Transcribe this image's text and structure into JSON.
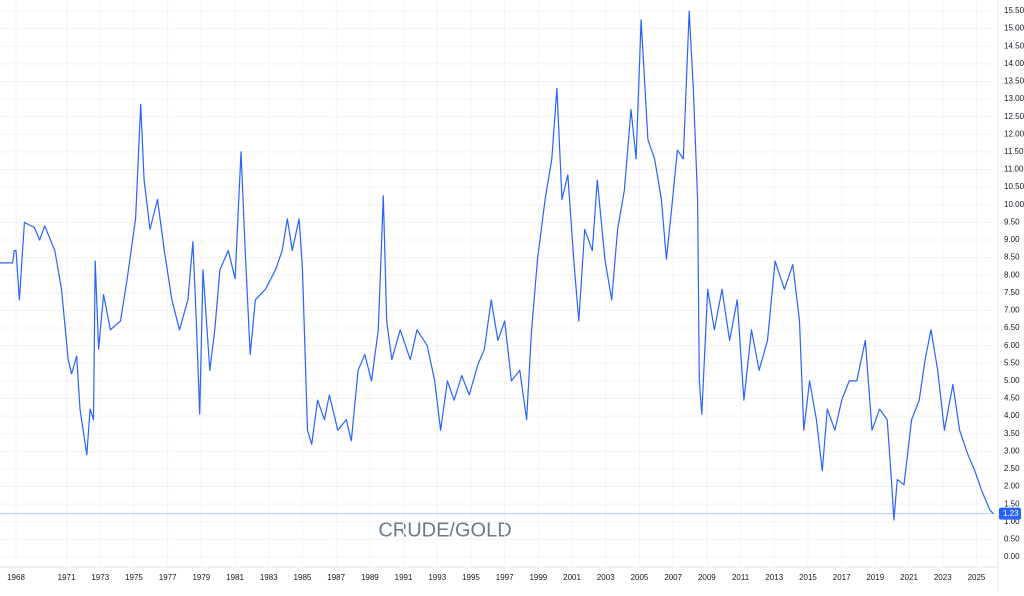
{
  "chart_data": {
    "type": "line",
    "title": "CRUDE/GOLD",
    "x": [
      1967.05,
      1967.8,
      1967.9,
      1968.0,
      1968.2,
      1968.5,
      1969.1,
      1969.4,
      1969.7,
      1970.3,
      1970.7,
      1971.1,
      1971.3,
      1971.6,
      1971.8,
      1972.2,
      1972.4,
      1972.6,
      1972.7,
      1972.9,
      1973.2,
      1973.6,
      1974.2,
      1974.6,
      1975.1,
      1975.4,
      1975.6,
      1975.95,
      1976.4,
      1976.8,
      1977.25,
      1977.7,
      1978.2,
      1978.5,
      1978.7,
      1978.9,
      1979.1,
      1979.5,
      1979.8,
      1980.1,
      1980.6,
      1981.0,
      1981.35,
      1981.6,
      1981.9,
      1982.2,
      1982.8,
      1983.4,
      1983.8,
      1984.1,
      1984.4,
      1984.8,
      1985.0,
      1985.3,
      1985.55,
      1985.9,
      1986.3,
      1986.6,
      1987.1,
      1987.6,
      1987.9,
      1988.3,
      1988.7,
      1989.1,
      1989.5,
      1989.8,
      1990.0,
      1990.3,
      1990.8,
      1991.4,
      1991.8,
      1992.4,
      1992.85,
      1993.2,
      1993.6,
      1994.0,
      1994.45,
      1994.9,
      1995.4,
      1995.8,
      1996.2,
      1996.6,
      1997.0,
      1997.4,
      1997.9,
      1998.3,
      1998.6,
      1998.95,
      1999.4,
      1999.8,
      2000.1,
      2000.4,
      2000.75,
      2001.1,
      2001.4,
      2001.75,
      2002.2,
      2002.5,
      2002.95,
      2003.35,
      2003.7,
      2004.1,
      2004.5,
      2004.8,
      2005.1,
      2005.5,
      2005.9,
      2006.3,
      2006.6,
      2006.9,
      2007.25,
      2007.6,
      2007.95,
      2008.2,
      2008.45,
      2008.55,
      2008.7,
      2009.05,
      2009.45,
      2009.9,
      2010.35,
      2010.8,
      2011.2,
      2011.65,
      2012.1,
      2012.6,
      2013.05,
      2013.6,
      2014.1,
      2014.5,
      2014.75,
      2015.1,
      2015.5,
      2015.85,
      2016.15,
      2016.6,
      2017.0,
      2017.45,
      2017.9,
      2018.4,
      2018.8,
      2019.25,
      2019.7,
      2019.95,
      2020.1,
      2020.3,
      2020.7,
      2021.15,
      2021.6,
      2021.95,
      2022.3,
      2022.7,
      2023.1,
      2023.6,
      2024.0,
      2024.5,
      2024.9,
      2025.3,
      2025.8,
      2026.0
    ],
    "series": [
      {
        "color": "#2962ff",
        "values": [
          8.35,
          8.35,
          8.7,
          8.7,
          7.3,
          9.5,
          9.35,
          9.0,
          9.4,
          8.7,
          7.6,
          5.6,
          5.2,
          5.7,
          4.2,
          2.9,
          4.2,
          3.9,
          8.4,
          5.9,
          7.45,
          6.45,
          6.7,
          7.9,
          9.6,
          12.85,
          10.7,
          9.3,
          10.15,
          8.7,
          7.3,
          6.45,
          7.3,
          8.95,
          6.7,
          4.05,
          8.15,
          5.3,
          6.45,
          8.15,
          8.7,
          7.9,
          11.5,
          8.7,
          5.75,
          7.3,
          7.6,
          8.15,
          8.7,
          9.6,
          8.7,
          9.6,
          8.15,
          3.6,
          3.2,
          4.45,
          3.9,
          4.6,
          3.6,
          3.9,
          3.3,
          5.3,
          5.75,
          5.0,
          6.45,
          10.25,
          6.7,
          5.6,
          6.45,
          5.6,
          6.45,
          6.0,
          5.0,
          3.6,
          5.0,
          4.45,
          5.15,
          4.6,
          5.45,
          5.9,
          7.3,
          6.15,
          6.7,
          5.0,
          5.3,
          3.9,
          6.45,
          8.45,
          10.15,
          11.3,
          13.3,
          10.15,
          10.85,
          8.45,
          6.7,
          9.3,
          8.7,
          10.7,
          8.45,
          7.3,
          9.3,
          10.4,
          12.7,
          11.3,
          15.25,
          11.85,
          11.3,
          10.15,
          8.45,
          9.85,
          11.55,
          11.3,
          15.5,
          13.25,
          10.15,
          5.0,
          4.05,
          7.6,
          6.45,
          7.6,
          6.15,
          7.3,
          4.45,
          6.45,
          5.3,
          6.15,
          8.4,
          7.6,
          8.3,
          6.7,
          3.6,
          5.0,
          3.9,
          2.45,
          4.2,
          3.6,
          4.45,
          5.0,
          5.0,
          6.15,
          3.6,
          4.2,
          3.9,
          2.2,
          1.05,
          2.2,
          2.05,
          3.9,
          4.45,
          5.6,
          6.45,
          5.3,
          3.6,
          4.9,
          3.6,
          2.9,
          2.45,
          1.9,
          1.33,
          1.23
        ]
      }
    ],
    "xlim": [
      1967.05,
      2026.1
    ],
    "xticks": [
      1968,
      1971,
      1973,
      1975,
      1977,
      1979,
      1981,
      1983,
      1985,
      1987,
      1989,
      1991,
      1993,
      1995,
      1997,
      1999,
      2001,
      2003,
      2005,
      2007,
      2009,
      2011,
      2013,
      2015,
      2017,
      2019,
      2021,
      2023,
      2025
    ],
    "ylim": [
      0,
      15.5
    ],
    "yticks": [
      {
        "value": 0,
        "label": "0.00"
      },
      {
        "value": 0.5,
        "label": "0.50"
      },
      {
        "value": 1,
        "label": "1.00"
      },
      {
        "value": 1.5,
        "label": "1.50"
      },
      {
        "value": 2,
        "label": "2.00"
      },
      {
        "value": 2.5,
        "label": "2.50"
      },
      {
        "value": 3,
        "label": "3.00"
      },
      {
        "value": 3.5,
        "label": "3.50"
      },
      {
        "value": 4,
        "label": "4.00"
      },
      {
        "value": 4.5,
        "label": "4.50"
      },
      {
        "value": 5,
        "label": "5.00"
      },
      {
        "value": 5.5,
        "label": "5.50"
      },
      {
        "value": 6,
        "label": "6.00"
      },
      {
        "value": 6.5,
        "label": "6.50"
      },
      {
        "value": 7,
        "label": "7.00"
      },
      {
        "value": 7.5,
        "label": "7.50"
      },
      {
        "value": 8,
        "label": "8.00"
      },
      {
        "value": 8.5,
        "label": "8.50"
      },
      {
        "value": 9,
        "label": "9.00"
      },
      {
        "value": 9.5,
        "label": "9.50"
      },
      {
        "value": 10,
        "label": "10.00"
      },
      {
        "value": 10.5,
        "label": "10.50"
      },
      {
        "value": 11,
        "label": "11.00"
      },
      {
        "value": 11.5,
        "label": "11.50"
      },
      {
        "value": 12,
        "label": "12.00"
      },
      {
        "value": 12.5,
        "label": "12.50"
      },
      {
        "value": 13,
        "label": "13.00"
      },
      {
        "value": 13.5,
        "label": "13.50"
      },
      {
        "value": 14,
        "label": "14.00"
      },
      {
        "value": 14.5,
        "label": "14.50"
      },
      {
        "value": 15,
        "label": "15.00"
      },
      {
        "value": 15.5,
        "label": "15.50"
      }
    ],
    "grid": true
  }
}
